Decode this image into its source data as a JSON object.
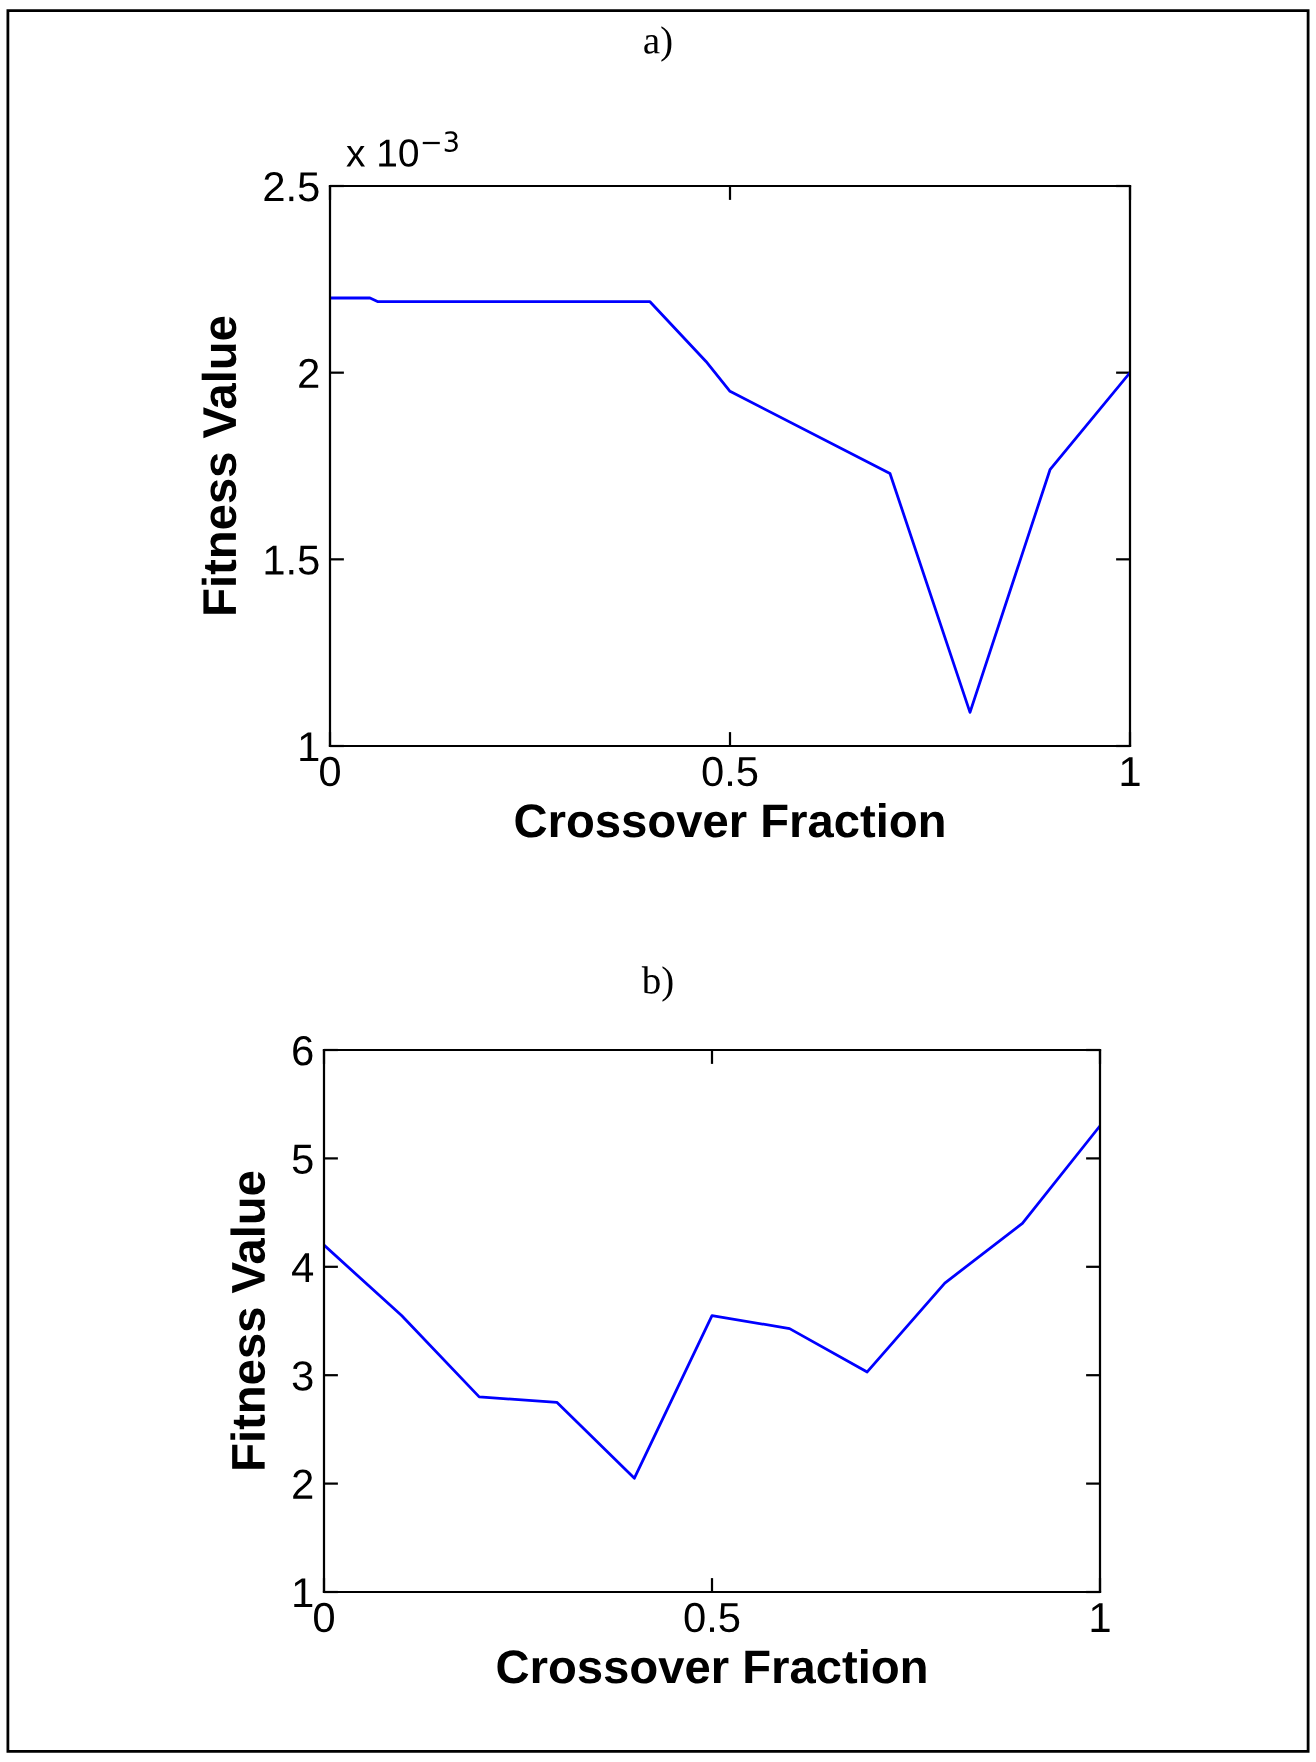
{
  "chart_data": [
    {
      "type": "line",
      "title": "a)",
      "xlabel": "Crossover Fraction",
      "ylabel": "Fitness Value",
      "annotations": [
        "x 10$^{−3}$"
      ],
      "x": [
        0,
        0.05,
        0.06,
        0.4,
        0.47,
        0.5,
        0.7,
        0.8,
        0.9,
        1
      ],
      "series": [
        {
          "color": "#0000ff",
          "values": [
            2.2,
            2.2,
            2.19,
            2.19,
            2.03,
            1.95,
            1.73,
            1.09,
            1.74,
            2.0
          ]
        }
      ],
      "xlim": [
        0,
        1
      ],
      "xticks": [
        0,
        0.5,
        1
      ],
      "ylim": [
        1,
        2.5
      ],
      "yticks": [
        1,
        1.5,
        2,
        2.5
      ],
      "grid": false,
      "legend": false
    },
    {
      "type": "line",
      "title": "b)",
      "xlabel": "Crossover Fraction",
      "ylabel": "Fitness Value",
      "x": [
        0,
        0.1,
        0.2,
        0.3,
        0.4,
        0.5,
        0.6,
        0.7,
        0.8,
        0.9,
        1
      ],
      "series": [
        {
          "color": "#0000ff",
          "values": [
            4.2,
            3.55,
            2.8,
            2.75,
            2.05,
            3.55,
            3.43,
            3.03,
            3.85,
            4.4,
            5.3
          ]
        }
      ],
      "xlim": [
        0,
        1
      ],
      "xticks": [
        0,
        0.5,
        1
      ],
      "ylim": [
        1,
        6
      ],
      "yticks": [
        1,
        2,
        3,
        4,
        5,
        6
      ],
      "grid": false,
      "legend": false
    }
  ]
}
